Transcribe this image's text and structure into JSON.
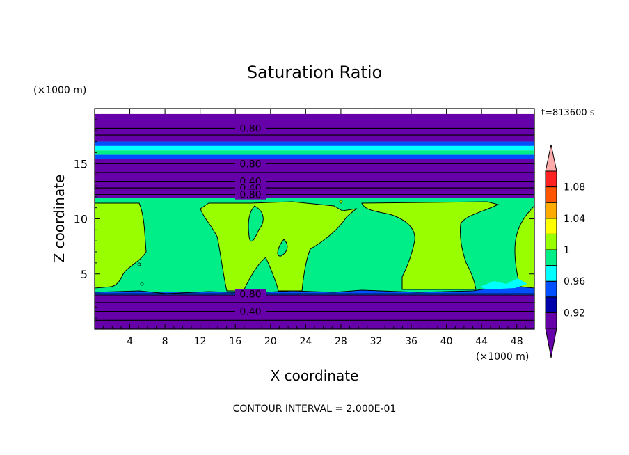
{
  "chart_data": {
    "type": "heatmap",
    "title": "Saturation Ratio",
    "xlabel": "X coordinate",
    "ylabel": "Z coordinate",
    "x_unit": "(×1000 m)",
    "y_unit": "(×1000 m)",
    "time_label": "t=813600 s",
    "footer": "CONTOUR INTERVAL = 2.000E-01",
    "xlim": [
      0,
      50
    ],
    "ylim": [
      0,
      20
    ],
    "x_ticks": [
      4,
      8,
      12,
      16,
      20,
      24,
      28,
      32,
      36,
      40,
      44,
      48
    ],
    "y_ticks": [
      5,
      10,
      15
    ],
    "colorbar": {
      "levels": [
        "0.92",
        "",
        "0.96",
        "",
        "1",
        "",
        "1.04",
        "",
        "1.08",
        ""
      ],
      "colors": [
        "#6600a8",
        "#0000aa",
        "#0050ff",
        "#00ffff",
        "#00ee88",
        "#99ff00",
        "#ffff00",
        "#ffaa00",
        "#ff5500",
        "#ff2222"
      ],
      "under_color": "#6600a8",
      "over_color": "#ffaaaa"
    },
    "regions": [
      {
        "from_z": 19.5,
        "to_z": 20,
        "color": "#ffffff"
      },
      {
        "from_z": 17.0,
        "to_z": 19.5,
        "color": "#6600a8"
      },
      {
        "from_z": 16.6,
        "to_z": 17.0,
        "color": "#0050ff"
      },
      {
        "from_z": 16.2,
        "to_z": 16.6,
        "color": "#00ffff"
      },
      {
        "from_z": 15.8,
        "to_z": 16.2,
        "color": "#00ee88"
      },
      {
        "from_z": 15.4,
        "to_z": 15.8,
        "color": "#0050ff"
      },
      {
        "from_z": 11.9,
        "to_z": 15.4,
        "color": "#6600a8"
      },
      {
        "from_z": 3.4,
        "to_z": 11.9,
        "color": "#00ee88"
      },
      {
        "from_z": 3.2,
        "to_z": 3.4,
        "color": "#0050ff"
      },
      {
        "from_z": 0,
        "to_z": 3.2,
        "color": "#6600a8"
      }
    ],
    "contour_lines": [
      {
        "z": 18.2,
        "label": "0.80"
      },
      {
        "z": 15.0,
        "label": "0.80"
      },
      {
        "z": 13.4,
        "label": "0.40"
      },
      {
        "z": 12.8,
        "label": "0.40"
      },
      {
        "z": 12.2,
        "label": "0.80"
      },
      {
        "z": 3.2,
        "label": "0.80"
      },
      {
        "z": 1.6,
        "label": "0.40"
      },
      {
        "z": 17.6,
        "label": ""
      },
      {
        "z": 14.2,
        "label": ""
      },
      {
        "z": 2.4,
        "label": ""
      },
      {
        "z": 0.8,
        "label": ""
      }
    ]
  }
}
